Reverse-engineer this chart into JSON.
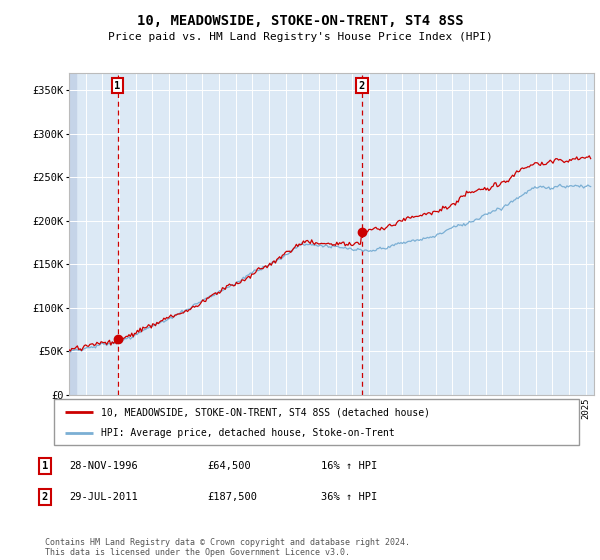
{
  "title": "10, MEADOWSIDE, STOKE-ON-TRENT, ST4 8SS",
  "subtitle": "Price paid vs. HM Land Registry's House Price Index (HPI)",
  "xlim_start": 1994.0,
  "xlim_end": 2025.5,
  "ylim": [
    0,
    370000
  ],
  "sale1_date": 1996.91,
  "sale1_price": 64500,
  "sale2_date": 2011.57,
  "sale2_price": 187500,
  "legend_line1": "10, MEADOWSIDE, STOKE-ON-TRENT, ST4 8SS (detached house)",
  "legend_line2": "HPI: Average price, detached house, Stoke-on-Trent",
  "copyright": "Contains HM Land Registry data © Crown copyright and database right 2024.\nThis data is licensed under the Open Government Licence v3.0.",
  "red_color": "#cc0000",
  "blue_color": "#7bafd4",
  "background_plot": "#dce9f5",
  "background_hatch": "#c5d4e8",
  "grid_color": "#ffffff",
  "ytick_labels": [
    "£0",
    "£50K",
    "£100K",
    "£150K",
    "£200K",
    "£250K",
    "£300K",
    "£350K"
  ],
  "ytick_values": [
    0,
    50000,
    100000,
    150000,
    200000,
    250000,
    300000,
    350000
  ],
  "table_rows": [
    {
      "num": "1",
      "date": "28-NOV-1996",
      "price": "£64,500",
      "pct": "16% ↑ HPI"
    },
    {
      "num": "2",
      "date": "29-JUL-2011",
      "price": "£187,500",
      "pct": "36% ↑ HPI"
    }
  ]
}
